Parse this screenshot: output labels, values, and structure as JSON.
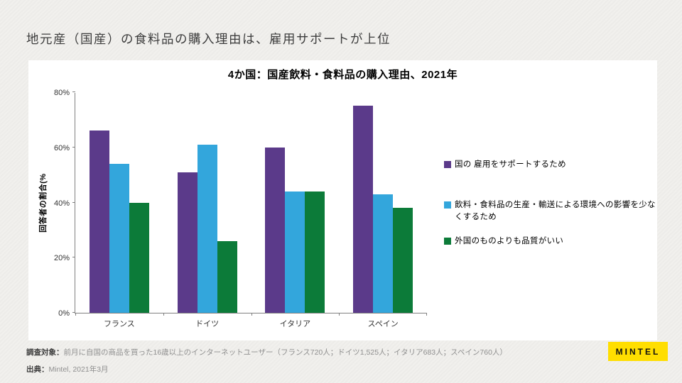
{
  "page": {
    "title": "地元産（国産）の食料品の購入理由は、雇用サポートが上位",
    "background_color": "#F1F0ED",
    "card_color": "#FFFFFF"
  },
  "chart_data": {
    "type": "bar",
    "title": "4か国：国産飲料・食料品の購入理由、2021年",
    "xlabel": "",
    "ylabel": "回答者の割合(%",
    "ylim": [
      0,
      80
    ],
    "yticks": [
      0,
      20,
      40,
      60,
      80
    ],
    "ytick_suffix": "%",
    "grid": false,
    "legend_position": "right",
    "axis_color": "#808080",
    "categories": [
      "フランス",
      "ドイツ",
      "イタリア",
      "スペイン"
    ],
    "series": [
      {
        "name": "国の 雇用をサポートするため",
        "color": "#5B3A8A",
        "values": [
          66,
          51,
          60,
          75
        ]
      },
      {
        "name": "飲料・食料品の生産・輸送による環境への影響を少なくするため",
        "color": "#33A6DC",
        "values": [
          54,
          61,
          44,
          43
        ]
      },
      {
        "name": "外国のものよりも品質がいい",
        "color": "#0C7B39",
        "values": [
          40,
          26,
          44,
          38
        ]
      }
    ]
  },
  "footer": {
    "source_label": "調査対象：",
    "source_text": "前月に自国の商品を買った16歳以上のインターネットユーザー（フランス720人；ドイツ1,525人；イタリア683人；スペイン760人）",
    "origin_label": "出典：",
    "origin_text": "Mintel, 2021年3月"
  },
  "logo": {
    "text": "MINTEL",
    "background_color": "#FFDE00"
  }
}
